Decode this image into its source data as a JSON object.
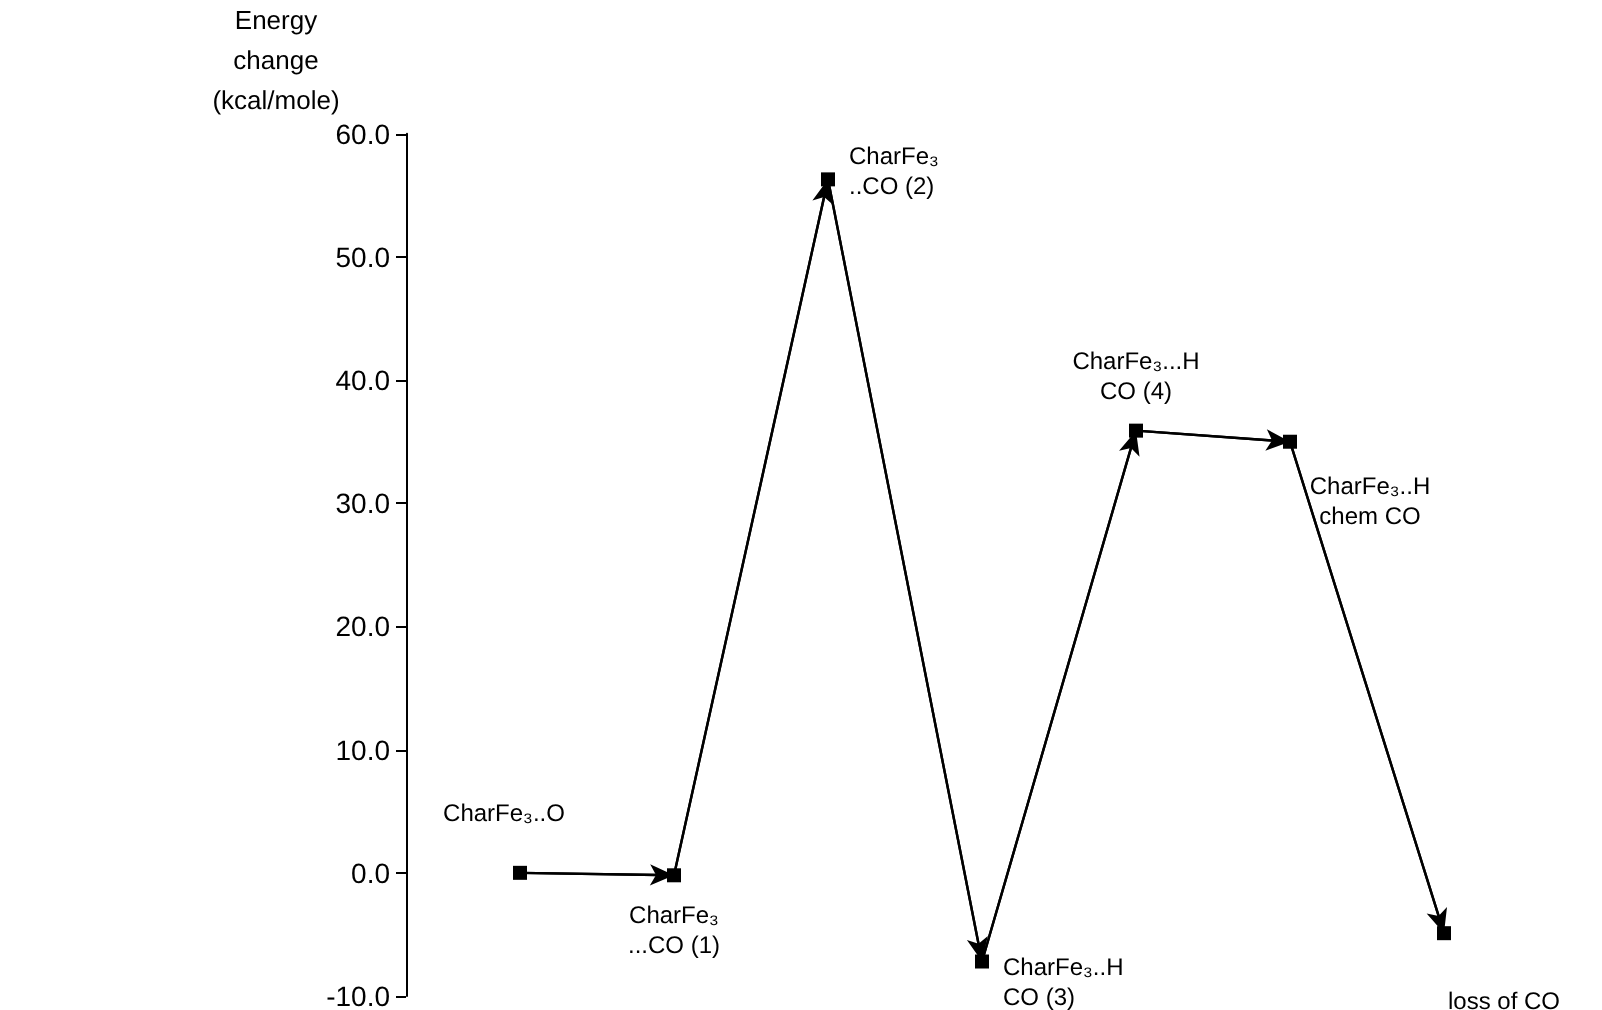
{
  "chart_data": {
    "type": "line",
    "ylabel": "Energy\nchange\n(kcal/mole)",
    "categories": [
      null,
      null,
      null,
      null,
      null,
      null,
      null
    ],
    "series": [
      {
        "color": "#000000",
        "values": [
          0.0,
          -0.2,
          56.3,
          -7.2,
          35.9,
          35.0,
          -4.9
        ]
      }
    ],
    "annotations": [
      "CharFe₃..O",
      "CharFe₃\n...CO (1)",
      "CharFe₃\n..CO (2)",
      "CharFe₃..H\nCO (3)",
      "CharFe₃...H\nCO (4)",
      "CharFe₃..H\nchem CO",
      "loss of CO"
    ],
    "ylim": [
      -10,
      60
    ],
    "yticks": [
      {
        "value": -10,
        "label": "-10.0"
      },
      {
        "value": 0,
        "label": "0.0"
      },
      {
        "value": 10,
        "label": "10.0"
      },
      {
        "value": 20,
        "label": "20.0"
      },
      {
        "value": 30,
        "label": "30.0"
      },
      {
        "value": 40,
        "label": "40.0"
      },
      {
        "value": 50,
        "label": "50.0"
      },
      {
        "value": 60,
        "label": "60.0"
      }
    ],
    "marker": "square",
    "line_style": "solid",
    "grid": false
  }
}
